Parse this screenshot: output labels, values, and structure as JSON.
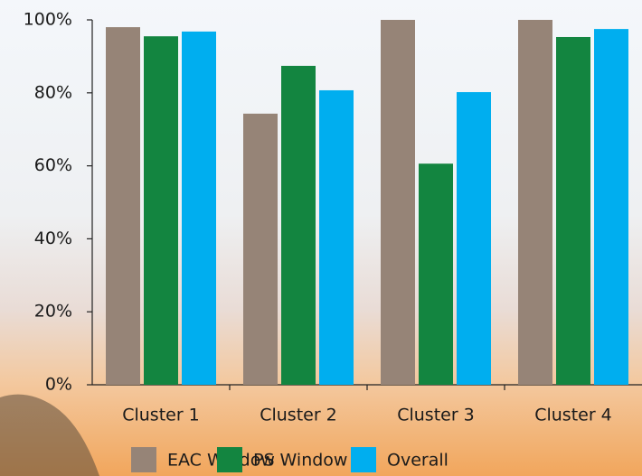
{
  "chart_data": {
    "type": "bar",
    "categories": [
      "Cluster 1",
      "Cluster 2",
      "Cluster 3",
      "Cluster 4"
    ],
    "series": [
      {
        "name": "EAC Window",
        "color": "#968477",
        "values": [
          98.0,
          74.3,
          100,
          100
        ]
      },
      {
        "name": "PS Window",
        "color": "#138540",
        "values": [
          95.5,
          87.4,
          60.6,
          95.3
        ]
      },
      {
        "name": "Overall",
        "color": "#00aeef",
        "values": [
          96.8,
          80.7,
          80.2,
          97.5
        ]
      }
    ],
    "ylim": [
      0,
      100
    ],
    "yticks": [
      {
        "value": 0,
        "label": "0%"
      },
      {
        "value": 20,
        "label": "20%"
      },
      {
        "value": 40,
        "label": "40%"
      },
      {
        "value": 60,
        "label": "60%"
      },
      {
        "value": 80,
        "label": "80%"
      },
      {
        "value": 100,
        "label": "100%"
      }
    ],
    "grid": false
  }
}
